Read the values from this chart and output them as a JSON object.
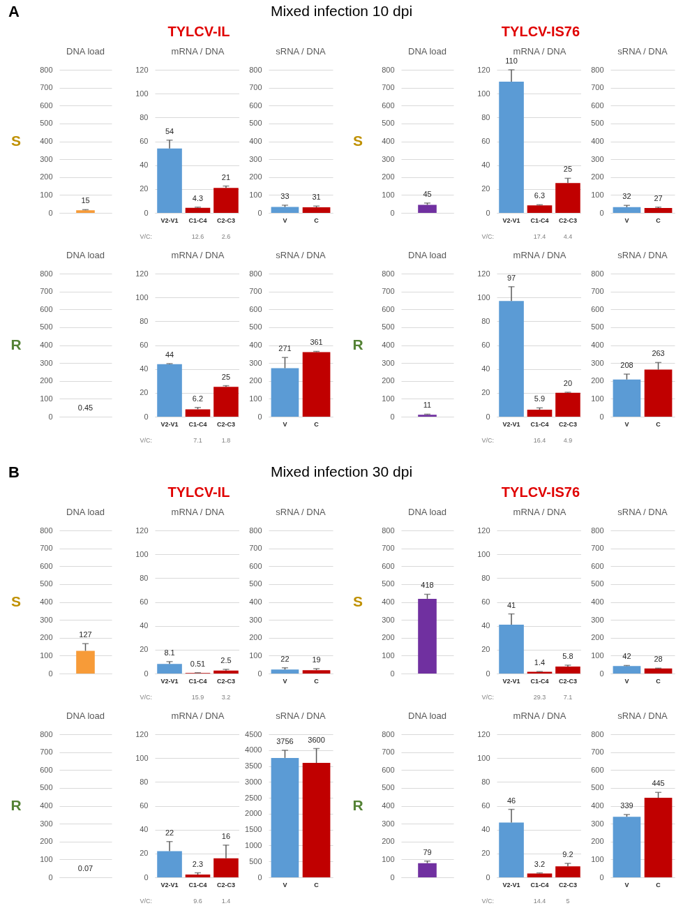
{
  "chart_data": [
    {
      "type": "other",
      "title": "Mixed infection 10 dpi",
      "annotations": [
        "A"
      ]
    },
    {
      "type": "other",
      "title": "TYLCV-IL"
    },
    {
      "type": "other",
      "title": "TYLCV-IS76"
    },
    {
      "type": "bar",
      "title": "DNA load",
      "categories": [
        null
      ],
      "values": [
        15
      ],
      "colors": [
        "#f79b38"
      ],
      "errors": [
        [
          15,
          18
        ]
      ],
      "ylim": [
        0,
        800
      ],
      "yticks": [
        0,
        100,
        200,
        300,
        400,
        500,
        600,
        700,
        800
      ],
      "grid": "y",
      "data_labels": true,
      "annotations": [
        "S"
      ]
    },
    {
      "type": "bar",
      "title": "mRNA / DNA",
      "categories": [
        "V2-V1",
        "C1-C4",
        "C2-C3"
      ],
      "values": [
        54,
        4.3,
        21
      ],
      "colors": [
        "#5b9bd5",
        "#c00000",
        "#c00000"
      ],
      "errors": [
        [
          54,
          61
        ],
        [
          4.3,
          4.8
        ],
        [
          21,
          22.5
        ]
      ],
      "ylim": [
        0,
        120
      ],
      "yticks": [
        0,
        20,
        40,
        60,
        80,
        100,
        120
      ],
      "grid": "y",
      "data_labels": true,
      "annotations": [
        "V/C:",
        "12.6",
        "2.6"
      ]
    },
    {
      "type": "bar",
      "title": "sRNA / DNA",
      "categories": [
        "V",
        "C"
      ],
      "values": [
        33,
        31
      ],
      "colors": [
        "#5b9bd5",
        "#c00000"
      ],
      "errors": [
        [
          33,
          43
        ],
        [
          31,
          38
        ]
      ],
      "ylim": [
        0,
        800
      ],
      "yticks": [
        0,
        100,
        200,
        300,
        400,
        500,
        600,
        700,
        800
      ],
      "grid": "y",
      "data_labels": true
    },
    {
      "type": "bar",
      "title": "DNA load",
      "categories": [
        null
      ],
      "values": [
        45
      ],
      "colors": [
        "#7030a0"
      ],
      "errors": [
        [
          45,
          55
        ]
      ],
      "ylim": [
        0,
        800
      ],
      "yticks": [
        0,
        100,
        200,
        300,
        400,
        500,
        600,
        700,
        800
      ],
      "grid": "y",
      "data_labels": true,
      "annotations": [
        "S"
      ]
    },
    {
      "type": "bar",
      "title": "mRNA / DNA",
      "categories": [
        "V2-V1",
        "C1-C4",
        "C2-C3"
      ],
      "values": [
        110,
        6.3,
        25
      ],
      "colors": [
        "#5b9bd5",
        "#c00000",
        "#c00000"
      ],
      "errors": [
        [
          110,
          120
        ],
        [
          6.3,
          6.8
        ],
        [
          25,
          29
        ]
      ],
      "ylim": [
        0,
        120
      ],
      "yticks": [
        0,
        20,
        40,
        60,
        80,
        100,
        120
      ],
      "grid": "y",
      "data_labels": true,
      "annotations": [
        "V/C:",
        "17.4",
        "4.4"
      ]
    },
    {
      "type": "bar",
      "title": "sRNA / DNA",
      "categories": [
        "V",
        "C"
      ],
      "values": [
        32,
        27
      ],
      "colors": [
        "#5b9bd5",
        "#c00000"
      ],
      "errors": [
        [
          32,
          42
        ],
        [
          27,
          32
        ]
      ],
      "ylim": [
        0,
        800
      ],
      "yticks": [
        0,
        100,
        200,
        300,
        400,
        500,
        600,
        700,
        800
      ],
      "grid": "y",
      "data_labels": true
    },
    {
      "type": "bar",
      "title": "DNA load",
      "categories": [
        null
      ],
      "values": [
        0.45
      ],
      "colors": [
        "#f79b38"
      ],
      "ylim": [
        0,
        800
      ],
      "yticks": [
        0,
        100,
        200,
        300,
        400,
        500,
        600,
        700,
        800
      ],
      "grid": "y",
      "data_labels": true,
      "annotations": [
        "R"
      ]
    },
    {
      "type": "bar",
      "title": "mRNA / DNA",
      "categories": [
        "V2-V1",
        "C1-C4",
        "C2-C3"
      ],
      "values": [
        44,
        6.2,
        25
      ],
      "colors": [
        "#5b9bd5",
        "#c00000",
        "#c00000"
      ],
      "errors": [
        [
          44,
          44.5
        ],
        [
          6.2,
          7.7
        ],
        [
          25,
          26
        ]
      ],
      "ylim": [
        0,
        120
      ],
      "yticks": [
        0,
        20,
        40,
        60,
        80,
        100,
        120
      ],
      "grid": "y",
      "data_labels": true,
      "annotations": [
        "V/C:",
        "7.1",
        "1.8"
      ]
    },
    {
      "type": "bar",
      "title": "sRNA / DNA",
      "categories": [
        "V",
        "C"
      ],
      "values": [
        271,
        361
      ],
      "colors": [
        "#5b9bd5",
        "#c00000"
      ],
      "errors": [
        [
          271,
          331
        ],
        [
          361,
          365
        ]
      ],
      "ylim": [
        0,
        800
      ],
      "yticks": [
        0,
        100,
        200,
        300,
        400,
        500,
        600,
        700,
        800
      ],
      "grid": "y",
      "data_labels": true
    },
    {
      "type": "bar",
      "title": "DNA load",
      "categories": [
        null
      ],
      "values": [
        11
      ],
      "colors": [
        "#7030a0"
      ],
      "errors": [
        [
          11,
          14
        ]
      ],
      "ylim": [
        0,
        800
      ],
      "yticks": [
        0,
        100,
        200,
        300,
        400,
        500,
        600,
        700,
        800
      ],
      "grid": "y",
      "data_labels": true,
      "annotations": [
        "R"
      ]
    },
    {
      "type": "bar",
      "title": "mRNA / DNA",
      "categories": [
        "V2-V1",
        "C1-C4",
        "C2-C3"
      ],
      "values": [
        97,
        5.9,
        20
      ],
      "colors": [
        "#5b9bd5",
        "#c00000",
        "#c00000"
      ],
      "errors": [
        [
          97,
          109
        ],
        [
          5.9,
          7.4
        ],
        [
          20,
          20.5
        ]
      ],
      "ylim": [
        0,
        120
      ],
      "yticks": [
        0,
        20,
        40,
        60,
        80,
        100,
        120
      ],
      "grid": "y",
      "data_labels": true,
      "annotations": [
        "V/C:",
        "16.4",
        "4.9"
      ]
    },
    {
      "type": "bar",
      "title": "sRNA / DNA",
      "categories": [
        "V",
        "C"
      ],
      "values": [
        208,
        263
      ],
      "colors": [
        "#5b9bd5",
        "#c00000"
      ],
      "errors": [
        [
          208,
          238
        ],
        [
          263,
          303
        ]
      ],
      "ylim": [
        0,
        800
      ],
      "yticks": [
        0,
        100,
        200,
        300,
        400,
        500,
        600,
        700,
        800
      ],
      "grid": "y",
      "data_labels": true
    },
    {
      "type": "other",
      "title": "Mixed infection 30 dpi",
      "annotations": [
        "B"
      ]
    },
    {
      "type": "other",
      "title": "TYLCV-IL"
    },
    {
      "type": "other",
      "title": "TYLCV-IS76"
    },
    {
      "type": "bar",
      "title": "DNA load",
      "categories": [
        null
      ],
      "values": [
        127
      ],
      "colors": [
        "#f79b38"
      ],
      "errors": [
        [
          127,
          167
        ]
      ],
      "ylim": [
        0,
        800
      ],
      "yticks": [
        0,
        100,
        200,
        300,
        400,
        500,
        600,
        700,
        800
      ],
      "grid": "y",
      "data_labels": true,
      "annotations": [
        "S"
      ]
    },
    {
      "type": "bar",
      "title": "mRNA / DNA",
      "categories": [
        "V2-V1",
        "C1-C4",
        "C2-C3"
      ],
      "values": [
        8.1,
        0.51,
        2.5
      ],
      "colors": [
        "#5b9bd5",
        "#c00000",
        "#c00000"
      ],
      "errors": [
        [
          8.1,
          10
        ],
        [
          0.51,
          0.7
        ],
        [
          2.5,
          3.5
        ]
      ],
      "ylim": [
        0,
        120
      ],
      "yticks": [
        0,
        20,
        40,
        60,
        80,
        100,
        120
      ],
      "grid": "y",
      "data_labels": true,
      "annotations": [
        "V/C:",
        "15.9",
        "3.2"
      ]
    },
    {
      "type": "bar",
      "title": "sRNA / DNA",
      "categories": [
        "V",
        "C"
      ],
      "values": [
        22,
        19
      ],
      "colors": [
        "#5b9bd5",
        "#c00000"
      ],
      "errors": [
        [
          22,
          32
        ],
        [
          19,
          27
        ]
      ],
      "ylim": [
        0,
        800
      ],
      "yticks": [
        0,
        100,
        200,
        300,
        400,
        500,
        600,
        700,
        800
      ],
      "grid": "y",
      "data_labels": true
    },
    {
      "type": "bar",
      "title": "DNA load",
      "categories": [
        null
      ],
      "values": [
        418
      ],
      "colors": [
        "#7030a0"
      ],
      "errors": [
        [
          418,
          443
        ]
      ],
      "ylim": [
        0,
        800
      ],
      "yticks": [
        0,
        100,
        200,
        300,
        400,
        500,
        600,
        700,
        800
      ],
      "grid": "y",
      "data_labels": true,
      "annotations": [
        "S"
      ]
    },
    {
      "type": "bar",
      "title": "mRNA / DNA",
      "categories": [
        "V2-V1",
        "C1-C4",
        "C2-C3"
      ],
      "values": [
        41,
        1.4,
        5.8
      ],
      "colors": [
        "#5b9bd5",
        "#c00000",
        "#c00000"
      ],
      "errors": [
        [
          41,
          50
        ],
        [
          1.4,
          1.7
        ],
        [
          5.8,
          7
        ]
      ],
      "ylim": [
        0,
        120
      ],
      "yticks": [
        0,
        20,
        40,
        60,
        80,
        100,
        120
      ],
      "grid": "y",
      "data_labels": true,
      "annotations": [
        "V/C:",
        "29.3",
        "7.1"
      ]
    },
    {
      "type": "bar",
      "title": "sRNA / DNA",
      "categories": [
        "V",
        "C"
      ],
      "values": [
        42,
        28
      ],
      "colors": [
        "#5b9bd5",
        "#c00000"
      ],
      "errors": [
        [
          42,
          45
        ],
        [
          28,
          30
        ]
      ],
      "ylim": [
        0,
        800
      ],
      "yticks": [
        0,
        100,
        200,
        300,
        400,
        500,
        600,
        700,
        800
      ],
      "grid": "y",
      "data_labels": true
    },
    {
      "type": "bar",
      "title": "DNA load",
      "categories": [
        null
      ],
      "values": [
        0.07
      ],
      "colors": [
        "#f79b38"
      ],
      "ylim": [
        0,
        800
      ],
      "yticks": [
        0,
        100,
        200,
        300,
        400,
        500,
        600,
        700,
        800
      ],
      "grid": "y",
      "data_labels": true,
      "annotations": [
        "R"
      ]
    },
    {
      "type": "bar",
      "title": "mRNA / DNA",
      "categories": [
        "V2-V1",
        "C1-C4",
        "C2-C3"
      ],
      "values": [
        22,
        2.3,
        16
      ],
      "colors": [
        "#5b9bd5",
        "#c00000",
        "#c00000"
      ],
      "errors": [
        [
          22,
          30
        ],
        [
          2.3,
          3.8
        ],
        [
          16,
          27
        ]
      ],
      "ylim": [
        0,
        120
      ],
      "yticks": [
        0,
        20,
        40,
        60,
        80,
        100,
        120
      ],
      "grid": "y",
      "data_labels": true,
      "annotations": [
        "V/C:",
        "9.6",
        "1.4"
      ]
    },
    {
      "type": "bar",
      "title": "sRNA / DNA",
      "categories": [
        "V",
        "C"
      ],
      "values": [
        3756,
        3600
      ],
      "colors": [
        "#5b9bd5",
        "#c00000"
      ],
      "errors": [
        [
          3756,
          3996
        ],
        [
          3600,
          4050
        ]
      ],
      "ylim": [
        0,
        4500
      ],
      "yticks": [
        0,
        500,
        1000,
        1500,
        2000,
        2500,
        3000,
        3500,
        4000,
        4500
      ],
      "grid": "y",
      "data_labels": true
    },
    {
      "type": "bar",
      "title": "DNA load",
      "categories": [
        null
      ],
      "values": [
        79
      ],
      "colors": [
        "#7030a0"
      ],
      "errors": [
        [
          79,
          91
        ]
      ],
      "ylim": [
        0,
        800
      ],
      "yticks": [
        0,
        100,
        200,
        300,
        400,
        500,
        600,
        700,
        800
      ],
      "grid": "y",
      "data_labels": true,
      "annotations": [
        "R"
      ]
    },
    {
      "type": "bar",
      "title": "mRNA / DNA",
      "categories": [
        "V2-V1",
        "C1-C4",
        "C2-C3"
      ],
      "values": [
        46,
        3.2,
        9.2
      ],
      "colors": [
        "#5b9bd5",
        "#c00000",
        "#c00000"
      ],
      "errors": [
        [
          46,
          57
        ],
        [
          3.2,
          3.7
        ],
        [
          9.2,
          11.7
        ]
      ],
      "ylim": [
        0,
        120
      ],
      "yticks": [
        0,
        20,
        40,
        60,
        80,
        100,
        120
      ],
      "grid": "y",
      "data_labels": true,
      "annotations": [
        "V/C:",
        "14.4",
        "5"
      ]
    },
    {
      "type": "bar",
      "title": "sRNA / DNA",
      "categories": [
        "V",
        "C"
      ],
      "values": [
        339,
        445
      ],
      "colors": [
        "#5b9bd5",
        "#c00000"
      ],
      "errors": [
        [
          339,
          351
        ],
        [
          445,
          475
        ]
      ],
      "ylim": [
        0,
        800
      ],
      "yticks": [
        0,
        100,
        200,
        300,
        400,
        500,
        600,
        700,
        800
      ],
      "grid": "y",
      "data_labels": true
    }
  ]
}
